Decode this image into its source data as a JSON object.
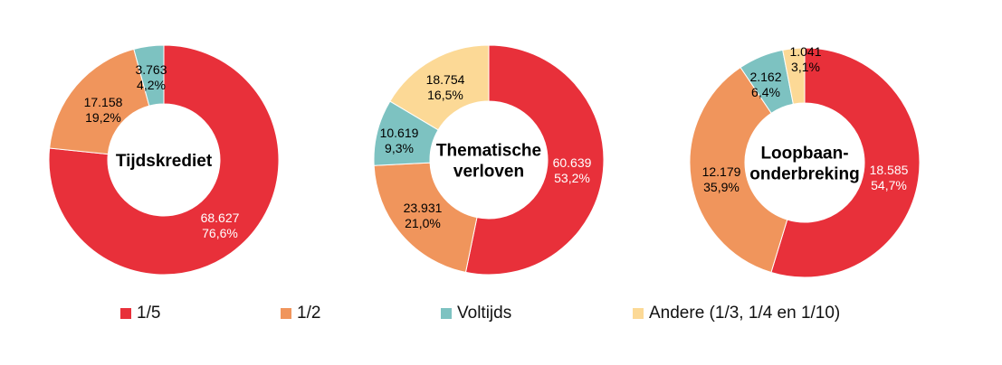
{
  "chart_data": [
    {
      "type": "pie",
      "donut": true,
      "title": "Tijdskrediet",
      "title_lines": [
        "Tijdskrediet"
      ],
      "slices": [
        {
          "key": "1/5",
          "value": 68627,
          "value_label": "68.627",
          "pct_label": "76,6%"
        },
        {
          "key": "1/2",
          "value": 17158,
          "value_label": "17.158",
          "pct_label": "19,2%"
        },
        {
          "key": "Voltijds",
          "value": 3763,
          "value_label": "3.763",
          "pct_label": "4,2%"
        }
      ]
    },
    {
      "type": "pie",
      "donut": true,
      "title": "Thematische verloven",
      "title_lines": [
        "Thematische",
        "verloven"
      ],
      "slices": [
        {
          "key": "1/5",
          "value": 60639,
          "value_label": "60.639",
          "pct_label": "53,2%"
        },
        {
          "key": "1/2",
          "value": 23931,
          "value_label": "23.931",
          "pct_label": "21,0%"
        },
        {
          "key": "Voltijds",
          "value": 10619,
          "value_label": "10.619",
          "pct_label": "9,3%"
        },
        {
          "key": "Andere",
          "value": 18754,
          "value_label": "18.754",
          "pct_label": "16,5%"
        }
      ]
    },
    {
      "type": "pie",
      "donut": true,
      "title": "Loopbaan-onderbreking",
      "title_lines": [
        "Loopbaan-",
        "onderbreking"
      ],
      "slices": [
        {
          "key": "1/5",
          "value": 18585,
          "value_label": "18.585",
          "pct_label": "54,7%"
        },
        {
          "key": "1/2",
          "value": 12179,
          "value_label": "12.179",
          "pct_label": "35,9%"
        },
        {
          "key": "Voltijds",
          "value": 2162,
          "value_label": "2.162",
          "pct_label": "6,4%"
        },
        {
          "key": "Andere",
          "value": 1041,
          "value_label": "1.041",
          "pct_label": "3,1%"
        }
      ]
    }
  ],
  "legend": {
    "placement": "bottom",
    "items": [
      {
        "key": "1/5",
        "label": "1/5",
        "color": "#e8303a"
      },
      {
        "key": "1/2",
        "label": "1/2",
        "color": "#f0955c"
      },
      {
        "key": "Voltijds",
        "label": "Voltijds",
        "color": "#7dc2c1"
      },
      {
        "key": "Andere",
        "label": "Andere (1/3, 1/4 en 1/10)",
        "color": "#fcd996"
      }
    ]
  },
  "colors": {
    "1/5": "#e8303a",
    "1/2": "#f0955c",
    "Voltijds": "#7dc2c1",
    "Andere": "#fcd996"
  }
}
